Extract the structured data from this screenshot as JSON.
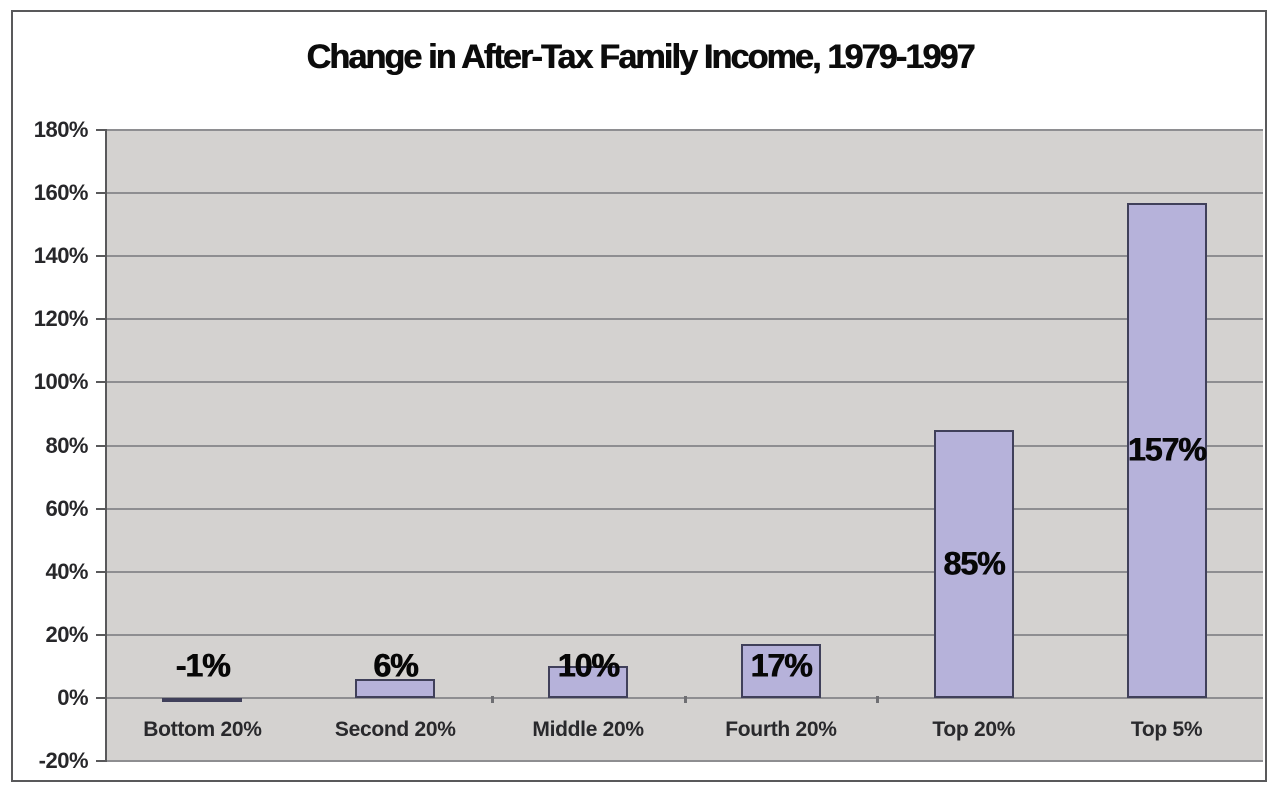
{
  "window": {
    "background": "#ffffff",
    "frame_border_color": "#59595b"
  },
  "chart_data": {
    "type": "bar",
    "title": "Change in After-Tax Family Income, 1979-1997",
    "categories": [
      "Bottom 20%",
      "Second 20%",
      "Middle 20%",
      "Fourth 20%",
      "Top 20%",
      "Top 5%"
    ],
    "values": [
      -1,
      6,
      10,
      17,
      85,
      157
    ],
    "value_labels": [
      "-1%",
      "6%",
      "10%",
      "17%",
      "85%",
      "157%"
    ],
    "value_label_placement": [
      "above",
      "above",
      "above",
      "above",
      "center",
      "center"
    ],
    "xlabel": "",
    "ylabel": "",
    "ylim": [
      -20,
      180
    ],
    "y_tick_values": [
      180,
      160,
      140,
      120,
      100,
      80,
      60,
      40,
      20,
      0,
      -20
    ],
    "y_tick_labels": [
      "180%",
      "160%",
      "140%",
      "120%",
      "100%",
      "80%",
      "60%",
      "40%",
      "20%",
      "0%",
      "-20%"
    ],
    "grid": "horizontal",
    "legend": "none",
    "colors": {
      "bar_fill": "#b6b2da",
      "bar_border": "#40405a",
      "plot_background": "#d4d2d0",
      "gridline": "#8e8e91",
      "axis": "#59595b",
      "title_text": "#0c0c0c",
      "axis_text": "#27272a",
      "value_text": "#070707"
    }
  }
}
